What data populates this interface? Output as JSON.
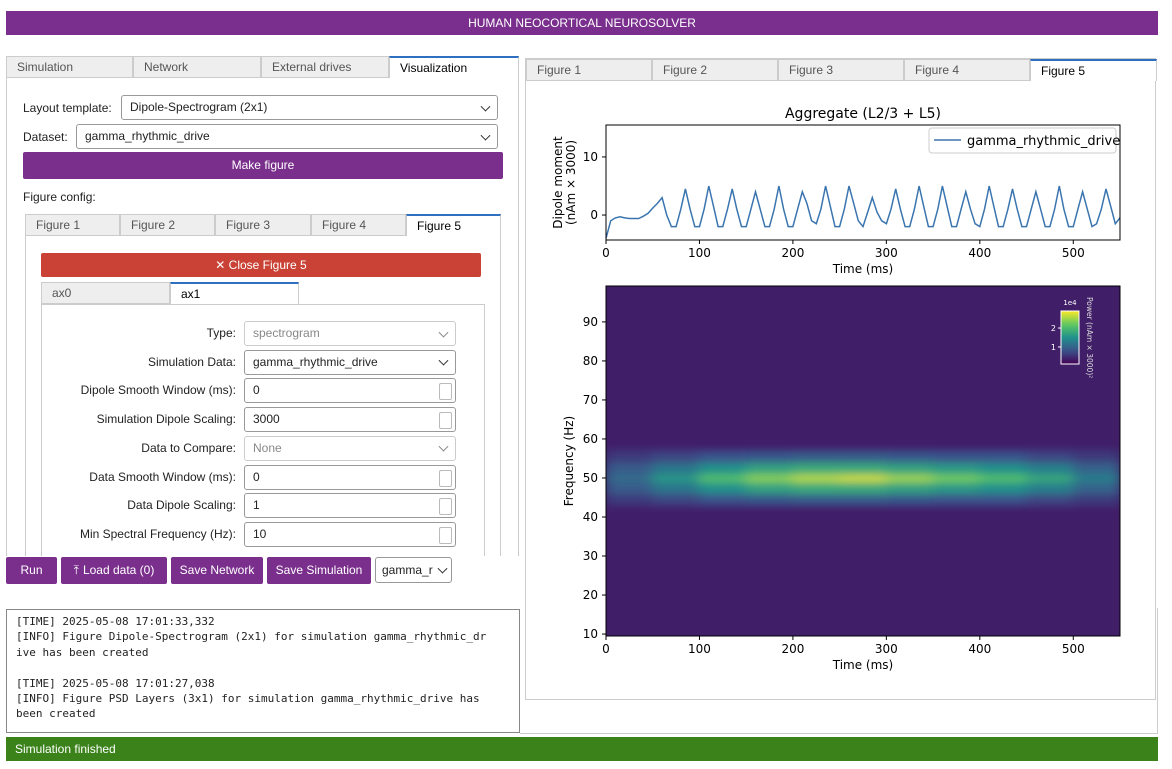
{
  "header": {
    "title": "HUMAN NEOCORTICAL NEUROSOLVER"
  },
  "left_tabs": [
    "Simulation",
    "Network",
    "External drives",
    "Visualization"
  ],
  "layout_template": {
    "label": "Layout template:",
    "value": "Dipole-Spectrogram (2x1)"
  },
  "dataset": {
    "label": "Dataset:",
    "value": "gamma_rhythmic_drive"
  },
  "make_figure": "Make figure",
  "figure_config": "Figure config:",
  "figure_tabs": [
    "Figure 1",
    "Figure 2",
    "Figure 3",
    "Figure 4",
    "Figure 5"
  ],
  "close_button": "✕ Close Figure 5",
  "ax_tabs": [
    "ax0",
    "ax1"
  ],
  "form": [
    {
      "label": "Type:",
      "value": "spectrogram",
      "control": "select",
      "disabled": true
    },
    {
      "label": "Simulation Data:",
      "value": "gamma_rhythmic_drive",
      "control": "select",
      "disabled": false
    },
    {
      "label": "Dipole Smooth Window (ms):",
      "value": "0",
      "control": "number",
      "disabled": false
    },
    {
      "label": "Simulation Dipole Scaling:",
      "value": "3000",
      "control": "number",
      "disabled": false
    },
    {
      "label": "Data to Compare:",
      "value": "None",
      "control": "select",
      "disabled": true
    },
    {
      "label": "Data Smooth Window (ms):",
      "value": "0",
      "control": "number",
      "disabled": false
    },
    {
      "label": "Data Dipole Scaling:",
      "value": "1",
      "control": "number",
      "disabled": false
    },
    {
      "label": "Min Spectral Frequency (Hz):",
      "value": "10",
      "control": "number",
      "disabled": false
    }
  ],
  "buttons": [
    "Run",
    "Load data (0)",
    "Save Network",
    "Save Simulation"
  ],
  "sim_select": "gamma_r",
  "log": [
    [
      "[TIME] 2025-05-08 17:01:33,332",
      "[INFO] Figure Dipole-Spectrogram (2x1) for simulation gamma_rhythmic_dr",
      "ive has been created"
    ],
    [
      "[TIME] 2025-05-08 17:01:27,038",
      "[INFO] Figure PSD Layers (3x1) for simulation gamma_rhythmic_drive has",
      "been created"
    ]
  ],
  "right_tabs": [
    "Figure 1",
    "Figure 2",
    "Figure 3",
    "Figure 4",
    "Figure 5"
  ],
  "status": "Simulation finished",
  "chart_data": [
    {
      "type": "line",
      "title": "Aggregate (L2/3 + L5)",
      "xlabel": "Time (ms)",
      "ylabel": [
        "Dipole moment",
        "(nAm × 3000)"
      ],
      "xlim": [
        0,
        550
      ],
      "xticks": [
        0,
        100,
        200,
        300,
        400,
        500
      ],
      "ylim": [
        -4.3,
        15.5
      ],
      "yticks": [
        0,
        10
      ],
      "legend": "upper right",
      "x": [
        0,
        5,
        10,
        15,
        20,
        25,
        30,
        35,
        40,
        45,
        50,
        55,
        60,
        65,
        70,
        75,
        80,
        85,
        90,
        95,
        100,
        105,
        110,
        115,
        120,
        125,
        130,
        135,
        140,
        145,
        150,
        155,
        160,
        165,
        170,
        175,
        180,
        185,
        190,
        195,
        200,
        205,
        210,
        215,
        220,
        225,
        230,
        235,
        240,
        245,
        250,
        255,
        260,
        265,
        270,
        275,
        280,
        285,
        290,
        295,
        300,
        305,
        310,
        315,
        320,
        325,
        330,
        335,
        340,
        345,
        350,
        355,
        360,
        365,
        370,
        375,
        380,
        385,
        390,
        395,
        400,
        405,
        410,
        415,
        420,
        425,
        430,
        435,
        440,
        445,
        450,
        455,
        460,
        465,
        470,
        475,
        480,
        485,
        490,
        495,
        500,
        505,
        510,
        515,
        520,
        525,
        530,
        535,
        540,
        545,
        550
      ],
      "series": [
        {
          "name": "gamma_rhythmic_drive",
          "color": "#3b75af",
          "values": [
            -4,
            -1,
            -0.5,
            -0.3,
            -0.5,
            -0.6,
            -0.6,
            -0.6,
            -0.2,
            0.3,
            1.2,
            2,
            3,
            0,
            -2,
            -2,
            1,
            4.5,
            1,
            -2,
            -2,
            1,
            5,
            1.5,
            -2,
            -2,
            1,
            4.5,
            1,
            -2,
            -2,
            1,
            4,
            1,
            -2,
            -2,
            1,
            5,
            1,
            -2,
            -2,
            1,
            4,
            2,
            -1,
            -1.5,
            1,
            5,
            1.5,
            -2,
            -2,
            1,
            5,
            2,
            -1,
            -2,
            0.5,
            3,
            0.5,
            -1,
            -1.5,
            1,
            4.5,
            1,
            -2,
            -2,
            1,
            5,
            1.5,
            -2,
            -2,
            1,
            5,
            1.5,
            -2,
            -2,
            1,
            4,
            1,
            -1.5,
            -2,
            1,
            5,
            1.5,
            -2,
            -2,
            1,
            4.5,
            1,
            -2,
            -2,
            1,
            4,
            1,
            -2,
            -2,
            1,
            5,
            1,
            -2,
            -2,
            1,
            4,
            1,
            -2,
            -1.5,
            1,
            4.5,
            1.5,
            -1.5,
            -0.5
          ]
        }
      ]
    },
    {
      "type": "heatmap",
      "xlabel": "Time (ms)",
      "ylabel": "Frequency (Hz)",
      "xlim": [
        0,
        550
      ],
      "xticks": [
        0,
        100,
        200,
        300,
        400,
        500
      ],
      "ylim": [
        9.5,
        99.2
      ],
      "yticks": [
        10,
        20,
        30,
        40,
        50,
        60,
        70,
        80,
        90
      ],
      "colormap": "viridis",
      "clim": [
        0.1,
        2.9
      ],
      "background": 0.35,
      "colorbar": {
        "label": "Power (nAm × 3000)²",
        "offset": "1e4",
        "ticks": [
          1,
          2
        ],
        "corner": "upper right"
      },
      "xbins": [
        0,
        50,
        100,
        150,
        200,
        250,
        300,
        350,
        400,
        450,
        500,
        550
      ],
      "ybins": [
        43,
        46,
        49,
        51,
        54,
        57
      ],
      "values": [
        [
          0.6,
          0.7,
          0.8,
          0.85,
          0.9,
          0.9,
          0.85,
          0.8,
          0.8,
          0.7,
          0.6
        ],
        [
          0.9,
          1.2,
          1.5,
          1.7,
          1.8,
          1.8,
          1.7,
          1.6,
          1.5,
          1.3,
          1.0
        ],
        [
          1.1,
          1.6,
          2.1,
          2.4,
          2.6,
          2.7,
          2.5,
          2.3,
          2.1,
          1.8,
          1.3
        ],
        [
          0.9,
          1.2,
          1.5,
          1.7,
          1.8,
          1.8,
          1.7,
          1.6,
          1.5,
          1.3,
          1.0
        ],
        [
          0.6,
          0.7,
          0.8,
          0.85,
          0.9,
          0.9,
          0.85,
          0.8,
          0.8,
          0.7,
          0.6
        ]
      ]
    }
  ]
}
